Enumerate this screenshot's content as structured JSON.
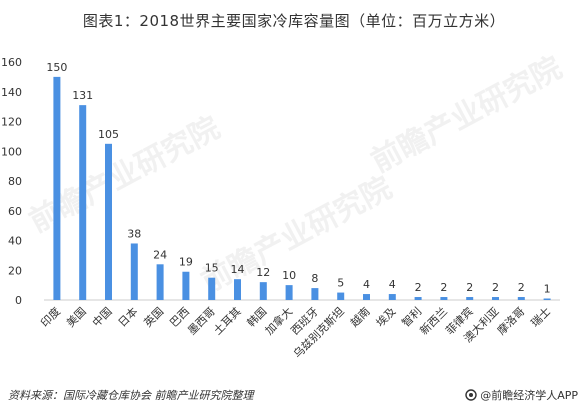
{
  "title": "图表1：2018世界主要国家冷库容量图（单位：百万立方米）",
  "watermark": "前瞻产业研究院",
  "source": "资料来源：国际冷藏仓库协会 前瞻产业研究院整理",
  "brand": "@前瞻经济学人APP",
  "colors": {
    "bar": "#4a90e2",
    "text": "#333333"
  },
  "chart_data": {
    "type": "bar",
    "title": "",
    "xlabel": "",
    "ylabel": "",
    "ylim": [
      0,
      160
    ],
    "yticks": [
      0,
      20,
      40,
      60,
      80,
      100,
      120,
      140,
      160
    ],
    "categories": [
      "印度",
      "美国",
      "中国",
      "日本",
      "英国",
      "巴西",
      "墨西哥",
      "土耳其",
      "韩国",
      "加拿大",
      "西班牙",
      "乌兹别克斯坦",
      "越南",
      "埃及",
      "智利",
      "新西兰",
      "菲律宾",
      "澳大利亚",
      "摩洛哥",
      "瑞士"
    ],
    "values": [
      150,
      131,
      105,
      38,
      24,
      19,
      15,
      14,
      12,
      10,
      8,
      5,
      4,
      4,
      2,
      2,
      2,
      2,
      2,
      1
    ]
  }
}
